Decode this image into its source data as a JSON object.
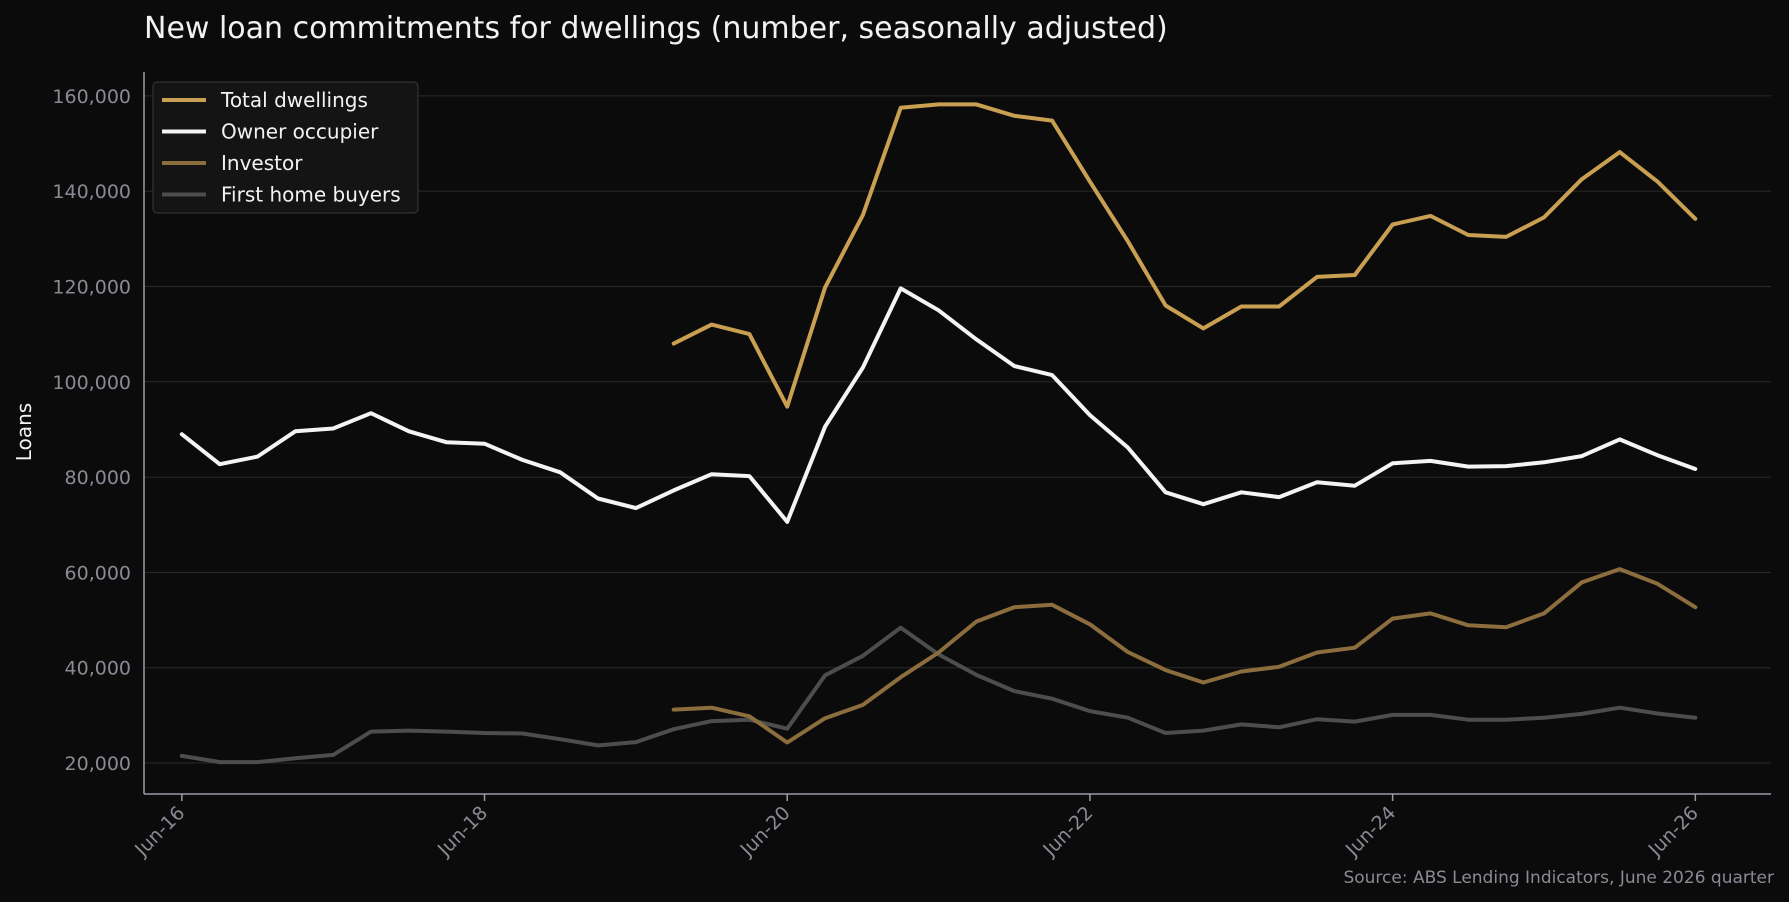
{
  "chart_data": {
    "type": "line",
    "title": "New loan commitments for dwellings (number, seasonally adjusted)",
    "ylabel": "Loans",
    "xlabel": "",
    "source": "Source: ABS Lending Indicators, June 2026 quarter",
    "xlim": [
      "Mar-16",
      "Dec-26"
    ],
    "ylim": [
      13500,
      165000
    ],
    "y_ticks": [
      20000,
      40000,
      60000,
      80000,
      100000,
      120000,
      140000,
      160000
    ],
    "y_tick_labels": [
      "20,000",
      "40,000",
      "60,000",
      "80,000",
      "100,000",
      "120,000",
      "140,000",
      "160,000"
    ],
    "x_ticks": [
      "Jun-16",
      "Jun-18",
      "Jun-20",
      "Jun-22",
      "Jun-24",
      "Jun-26"
    ],
    "grid": "horizontal",
    "legend_position": "top-left",
    "x": [
      "Jun-16",
      "Sep-16",
      "Dec-16",
      "Mar-17",
      "Jun-17",
      "Sep-17",
      "Dec-17",
      "Mar-18",
      "Jun-18",
      "Sep-18",
      "Dec-18",
      "Mar-19",
      "Jun-19",
      "Sep-19",
      "Dec-19",
      "Mar-20",
      "Jun-20",
      "Sep-20",
      "Dec-20",
      "Mar-21",
      "Jun-21",
      "Sep-21",
      "Dec-21",
      "Mar-22",
      "Jun-22",
      "Sep-22",
      "Dec-22",
      "Mar-23",
      "Jun-23",
      "Sep-23",
      "Dec-23",
      "Mar-24",
      "Jun-24",
      "Sep-24",
      "Dec-24",
      "Mar-25",
      "Jun-25",
      "Sep-25",
      "Dec-25",
      "Mar-26",
      "Jun-26"
    ],
    "series": [
      {
        "name": "Total dwellings",
        "color": "#c9a052",
        "values": [
          null,
          null,
          null,
          null,
          null,
          null,
          null,
          null,
          null,
          null,
          null,
          null,
          null,
          108000,
          112000,
          110000,
          94800,
          119800,
          135000,
          157500,
          158200,
          158200,
          155800,
          154800,
          142000,
          129500,
          116000,
          111200,
          115800,
          115800,
          122000,
          122400,
          133000,
          134800,
          130800,
          130400,
          134500,
          142500,
          148200,
          142000,
          134200
        ]
      },
      {
        "name": "Owner occupier",
        "color": "#f4f4f4",
        "values": [
          89000,
          82700,
          84300,
          89600,
          90200,
          93400,
          89600,
          87300,
          87000,
          83600,
          81000,
          75500,
          73500,
          77200,
          80600,
          80200,
          70600,
          90600,
          103000,
          119600,
          115000,
          108900,
          103300,
          101400,
          93000,
          86200,
          76800,
          74300,
          76800,
          75800,
          78900,
          78200,
          82900,
          83400,
          82200,
          82300,
          83100,
          84400,
          87900,
          84600,
          81700
        ]
      },
      {
        "name": "Investor",
        "color": "#8b6d3e",
        "values": [
          null,
          null,
          null,
          null,
          null,
          null,
          null,
          null,
          null,
          null,
          null,
          null,
          null,
          31200,
          31600,
          29800,
          24300,
          29400,
          32200,
          38000,
          43200,
          49700,
          52700,
          53200,
          49100,
          43300,
          39500,
          36900,
          39200,
          40200,
          43200,
          44200,
          50300,
          51400,
          48900,
          48500,
          51400,
          57900,
          60700,
          57600,
          52700
        ]
      },
      {
        "name": "First home buyers",
        "color": "#4d4d4d",
        "values": [
          21500,
          20200,
          20200,
          21000,
          21700,
          26600,
          26800,
          26600,
          26300,
          26200,
          25000,
          23700,
          24400,
          27100,
          28800,
          29100,
          27200,
          38400,
          42500,
          48400,
          42800,
          38500,
          35100,
          33500,
          30900,
          29500,
          26300,
          26800,
          28100,
          27500,
          29200,
          28700,
          30100,
          30100,
          29100,
          29100,
          29500,
          30300,
          31600,
          30400,
          29500
        ]
      }
    ]
  }
}
